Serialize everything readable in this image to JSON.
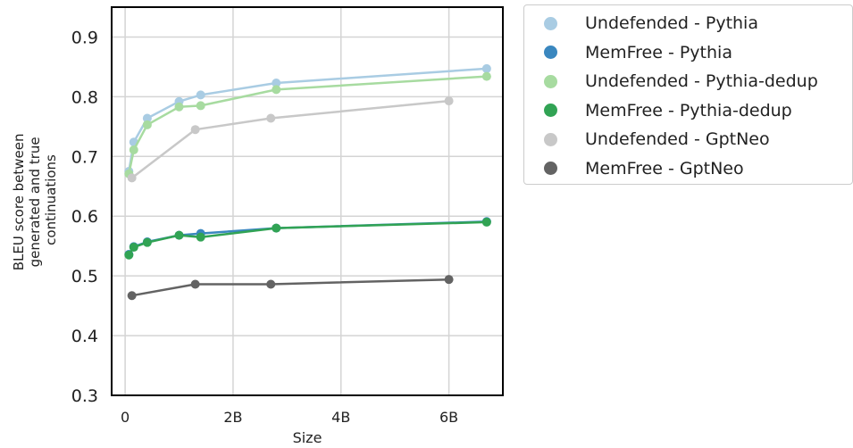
{
  "chart_data": {
    "type": "line",
    "xlabel": "Size",
    "ylabel": [
      "BLEU score between",
      "generated and true",
      "continuations"
    ],
    "x_ticks": [
      {
        "value": 0,
        "label": "0"
      },
      {
        "value": 2,
        "label": "2B"
      },
      {
        "value": 4,
        "label": "4B"
      },
      {
        "value": 6,
        "label": "6B"
      }
    ],
    "y_ticks": [
      {
        "value": 0.3,
        "label": "0.3"
      },
      {
        "value": 0.4,
        "label": "0.4"
      },
      {
        "value": 0.5,
        "label": "0.5"
      },
      {
        "value": 0.6,
        "label": "0.6"
      },
      {
        "value": 0.7,
        "label": "0.7"
      },
      {
        "value": 0.8,
        "label": "0.8"
      },
      {
        "value": 0.9,
        "label": "0.9"
      }
    ],
    "xlim": [
      -0.25,
      7.0
    ],
    "ylim": [
      0.3,
      0.95
    ],
    "grid": true,
    "legend_position": "outside-right",
    "series": [
      {
        "name": "Undefended - Pythia",
        "color": "#a9cce3",
        "x": [
          0.07,
          0.16,
          0.41,
          1.0,
          1.4,
          2.8,
          6.7
        ],
        "y": [
          0.675,
          0.724,
          0.764,
          0.792,
          0.803,
          0.823,
          0.847
        ]
      },
      {
        "name": "MemFree - Pythia",
        "color": "#3a87bf",
        "x": [
          0.07,
          0.16,
          0.41,
          1.0,
          1.4,
          2.8,
          6.7
        ],
        "y": [
          0.536,
          0.549,
          0.557,
          0.568,
          0.571,
          0.58,
          0.591
        ]
      },
      {
        "name": "Undefended - Pythia-dedup",
        "color": "#a7dba0",
        "x": [
          0.07,
          0.16,
          0.41,
          1.0,
          1.4,
          2.8,
          6.7
        ],
        "y": [
          0.671,
          0.711,
          0.753,
          0.783,
          0.785,
          0.812,
          0.834
        ]
      },
      {
        "name": "MemFree - Pythia-dedup",
        "color": "#31a354",
        "x": [
          0.07,
          0.16,
          0.41,
          1.0,
          1.4,
          2.8,
          6.7
        ],
        "y": [
          0.535,
          0.548,
          0.556,
          0.568,
          0.565,
          0.58,
          0.59
        ]
      },
      {
        "name": "Undefended - GptNeo",
        "color": "#c8c8c8",
        "x": [
          0.125,
          1.3,
          2.7,
          6.0
        ],
        "y": [
          0.664,
          0.745,
          0.764,
          0.793
        ]
      },
      {
        "name": "MemFree - GptNeo",
        "color": "#636363",
        "x": [
          0.125,
          1.3,
          2.7,
          6.0
        ],
        "y": [
          0.467,
          0.486,
          0.486,
          0.494
        ]
      }
    ]
  }
}
